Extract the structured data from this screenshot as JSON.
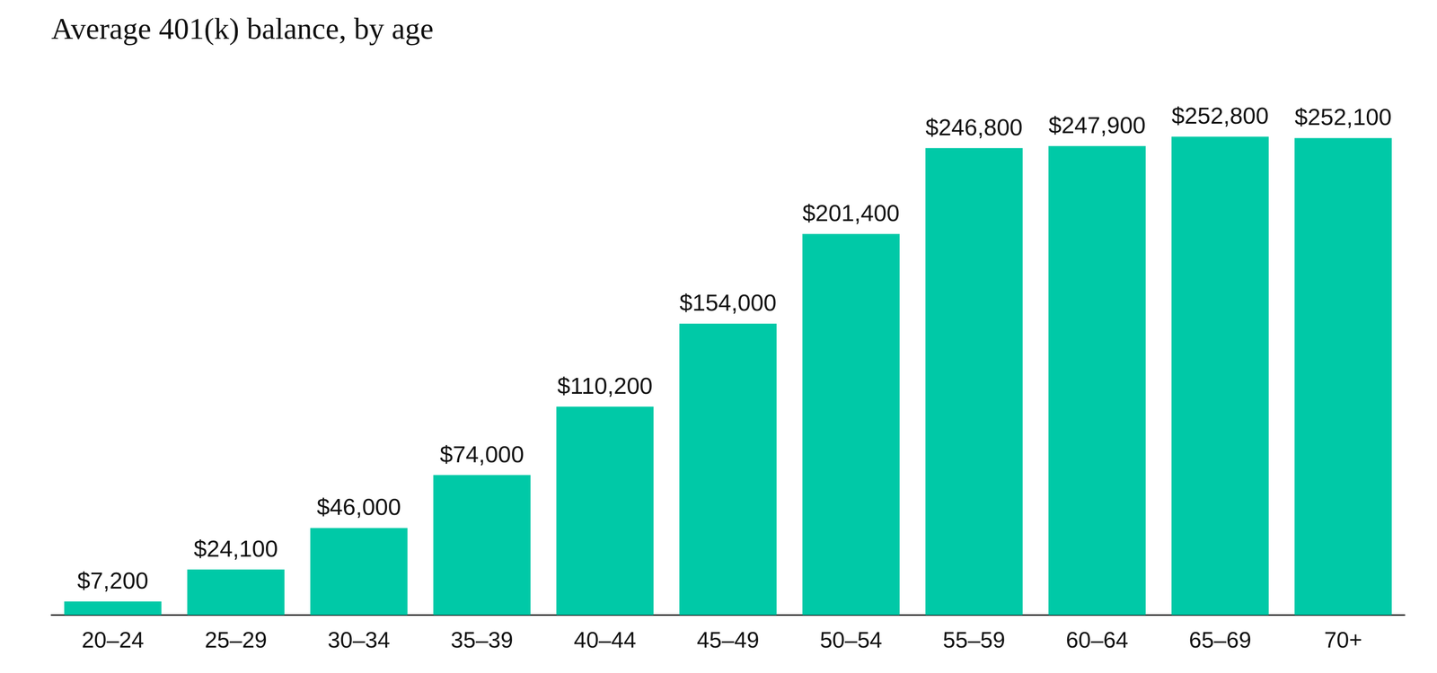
{
  "chart_data": {
    "type": "bar",
    "title": "Average 401(k) balance, by age",
    "categories": [
      "20–24",
      "25–29",
      "30–34",
      "35–39",
      "40–44",
      "45–49",
      "50–54",
      "55–59",
      "60–64",
      "65–69",
      "70+"
    ],
    "values": [
      7200,
      24100,
      46000,
      74000,
      110200,
      154000,
      201400,
      246800,
      247900,
      252800,
      252100
    ],
    "value_labels": [
      "$7,200",
      "$24,100",
      "$46,000",
      "$74,000",
      "$110,200",
      "$154,000",
      "$201,400",
      "$246,800",
      "$247,900",
      "$252,800",
      "$252,100"
    ],
    "color": "#00c9a7",
    "ylim": [
      0,
      290000
    ],
    "grid": false,
    "data_labels": true,
    "tick_labels": "x"
  }
}
